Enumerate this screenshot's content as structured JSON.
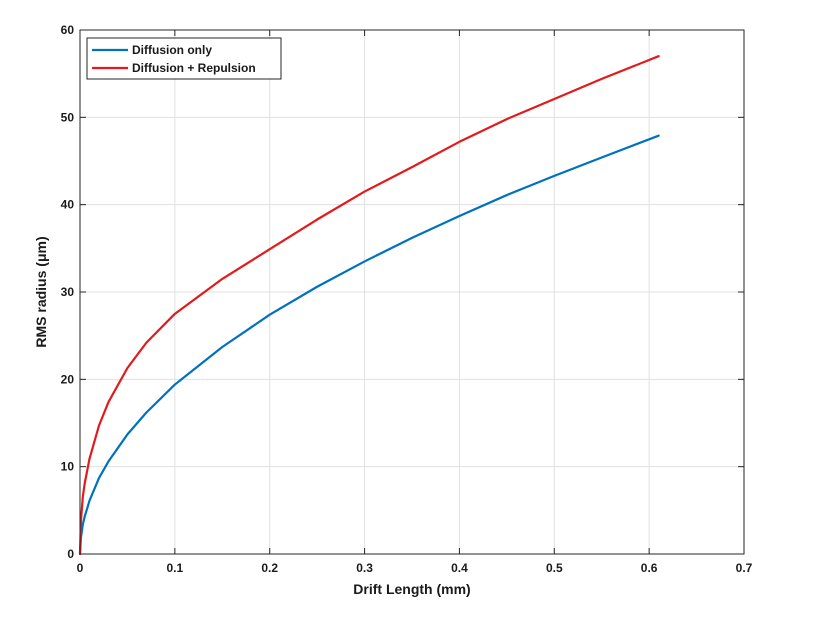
{
  "chart_data": {
    "type": "line",
    "title": "",
    "xlabel": "Drift Length (mm)",
    "ylabel": "RMS radius  (μm)",
    "xlim": [
      0,
      0.7
    ],
    "ylim": [
      0,
      60
    ],
    "xticks": [
      0,
      0.1,
      0.2,
      0.3,
      0.4,
      0.5,
      0.6,
      0.7
    ],
    "yticks": [
      0,
      10,
      20,
      30,
      40,
      50,
      60
    ],
    "xtick_labels": [
      "0",
      "0.1",
      "0.2",
      "0.3",
      "0.4",
      "0.5",
      "0.6",
      "0.7"
    ],
    "ytick_labels": [
      "0",
      "10",
      "20",
      "30",
      "40",
      "50",
      "60"
    ],
    "grid": true,
    "legend_position": "top-left",
    "x": [
      0,
      0.001,
      0.003,
      0.005,
      0.01,
      0.02,
      0.03,
      0.05,
      0.07,
      0.1,
      0.15,
      0.2,
      0.25,
      0.3,
      0.35,
      0.4,
      0.45,
      0.5,
      0.55,
      0.61
    ],
    "series": [
      {
        "name": "Diffusion only",
        "color": "#0072BD",
        "values": [
          0,
          1.9,
          3.4,
          4.3,
          6.1,
          8.7,
          10.6,
          13.7,
          16.2,
          19.4,
          23.7,
          27.4,
          30.6,
          33.5,
          36.2,
          38.7,
          41.1,
          43.3,
          45.4,
          47.9
        ]
      },
      {
        "name": "Diffusion + Repulsion",
        "color": "#E31A1C",
        "values": [
          0,
          3.8,
          6.6,
          8.1,
          10.9,
          14.7,
          17.4,
          21.3,
          24.2,
          27.5,
          31.5,
          34.9,
          38.3,
          41.5,
          44.3,
          47.2,
          49.8,
          52.1,
          54.4,
          57.0
        ]
      }
    ]
  }
}
